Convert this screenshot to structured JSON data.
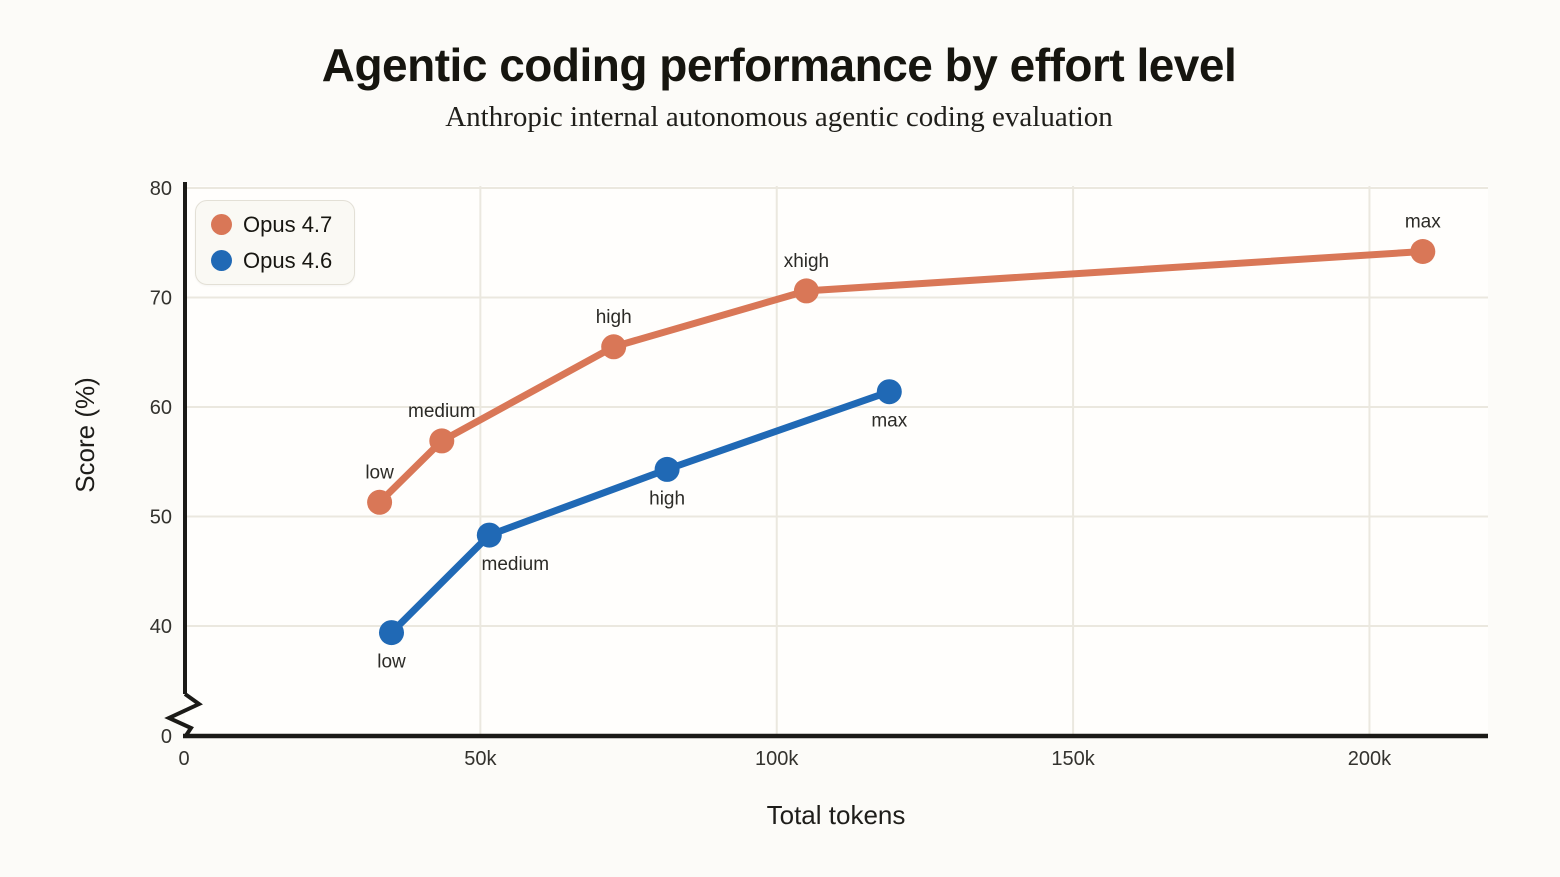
{
  "header": {
    "title": "Agentic coding performance by effort level",
    "subtitle": "Anthropic internal autonomous agentic coding evaluation"
  },
  "legend": {
    "position": "top-left",
    "items": [
      {
        "label": "Opus 4.7",
        "color": "#d97757"
      },
      {
        "label": "Opus 4.6",
        "color": "#2069b5"
      }
    ]
  },
  "colors": {
    "background": "#fcfbf8",
    "plot_background": "#fffefc",
    "grid": "#ebe8df",
    "axis": "#1b1a17",
    "tick_text": "#33322e",
    "annotation_text": "#2c2b27",
    "axis_title_text": "#1e1d1a",
    "opus_47": "#d97757",
    "opus_46": "#2069b5"
  },
  "chart_data": {
    "type": "line",
    "title": "Agentic coding performance by effort level",
    "subtitle": "Anthropic internal autonomous agentic coding evaluation",
    "xlabel": "Total tokens",
    "ylabel": "Score (%)",
    "grid": true,
    "legend_position": "top-left",
    "x_domain": [
      0,
      220000
    ],
    "y_domain_display": [
      40,
      80
    ],
    "y_axis_break": {
      "enabled": true,
      "between": [
        0,
        35
      ]
    },
    "x_ticks": [
      {
        "value": 0,
        "label": "0"
      },
      {
        "value": 50000,
        "label": "50k"
      },
      {
        "value": 100000,
        "label": "100k"
      },
      {
        "value": 150000,
        "label": "150k"
      },
      {
        "value": 200000,
        "label": "200k"
      }
    ],
    "y_ticks": [
      {
        "value": 80,
        "label": "80"
      },
      {
        "value": 70,
        "label": "70"
      },
      {
        "value": 60,
        "label": "60"
      },
      {
        "value": 50,
        "label": "50"
      },
      {
        "value": 40,
        "label": "40"
      },
      {
        "value": 0,
        "label": "0",
        "below_break": true
      }
    ],
    "series": [
      {
        "name": "Opus 4.7",
        "color": "#d97757",
        "points": [
          {
            "tokens": 33000,
            "score": 51.3,
            "effort": "low",
            "label_pos": "above"
          },
          {
            "tokens": 43500,
            "score": 56.9,
            "effort": "medium",
            "label_pos": "above"
          },
          {
            "tokens": 72500,
            "score": 65.5,
            "effort": "high",
            "label_pos": "above"
          },
          {
            "tokens": 105000,
            "score": 70.6,
            "effort": "xhigh",
            "label_pos": "above"
          },
          {
            "tokens": 209000,
            "score": 74.2,
            "effort": "max",
            "label_pos": "above"
          }
        ]
      },
      {
        "name": "Opus 4.6",
        "color": "#2069b5",
        "points": [
          {
            "tokens": 35000,
            "score": 39.4,
            "effort": "low",
            "label_pos": "below"
          },
          {
            "tokens": 51500,
            "score": 48.3,
            "effort": "medium",
            "label_pos": "below",
            "label_dx": 26
          },
          {
            "tokens": 81500,
            "score": 54.3,
            "effort": "high",
            "label_pos": "below"
          },
          {
            "tokens": 119000,
            "score": 61.4,
            "effort": "max",
            "label_pos": "below"
          }
        ]
      }
    ]
  }
}
